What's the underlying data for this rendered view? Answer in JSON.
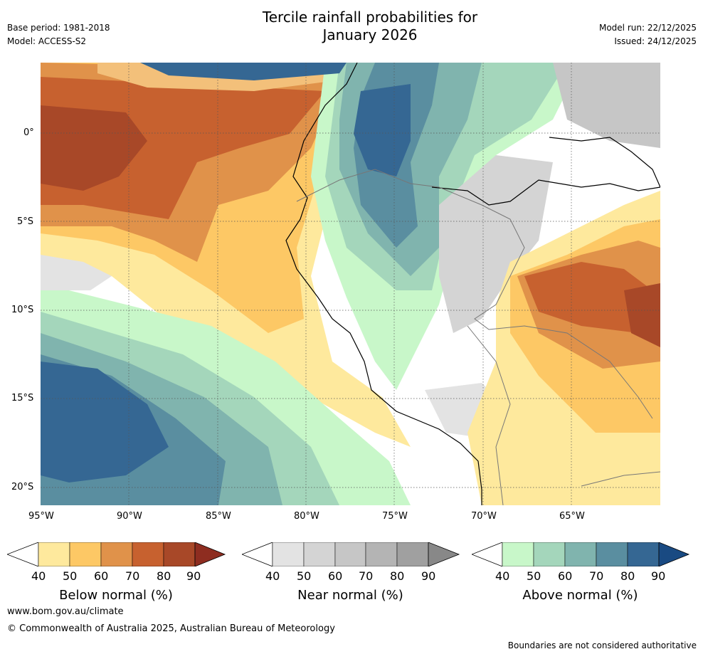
{
  "header": {
    "title_line1": "Tercile rainfall probabilities for",
    "title_line2": "January 2026",
    "base_period": "Base period: 1981-2018",
    "model": "Model: ACCESS-S2",
    "model_run": "Model run: 22/12/2025",
    "issued": "Issued: 24/12/2025"
  },
  "axes": {
    "lat_labels": [
      "0°",
      "5°S",
      "10°S",
      "15°S",
      "20°S"
    ],
    "lon_labels": [
      "95°W",
      "90°W",
      "85°W",
      "80°W",
      "75°W",
      "70°W",
      "65°W"
    ],
    "lat_values": [
      0,
      -5,
      -10,
      -15,
      -20
    ],
    "lon_values": [
      -95,
      -90,
      -85,
      -80,
      -75,
      -70,
      -65
    ],
    "lon_range": [
      -95,
      -60
    ],
    "lat_range": [
      -21,
      4
    ]
  },
  "colorbars": [
    {
      "name": "below",
      "title": "Below normal (%)",
      "ticks": [
        "40",
        "50",
        "60",
        "70",
        "80",
        "90"
      ],
      "colors": [
        "#ffffff",
        "#fee99d",
        "#fdc865",
        "#e0924a",
        "#c7612f",
        "#a84828",
        "#8e2d20"
      ]
    },
    {
      "name": "near",
      "title": "Near normal (%)",
      "ticks": [
        "40",
        "50",
        "60",
        "70",
        "80",
        "90"
      ],
      "colors": [
        "#ffffff",
        "#e3e3e3",
        "#d4d4d4",
        "#c6c6c6",
        "#b4b4b4",
        "#a0a0a0",
        "#888888"
      ]
    },
    {
      "name": "above",
      "title": "Above normal (%)",
      "ticks": [
        "40",
        "50",
        "60",
        "70",
        "80",
        "90"
      ],
      "colors": [
        "#ffffff",
        "#c8f7c9",
        "#a4d6bb",
        "#80b4ae",
        "#5a8ea0",
        "#356793",
        "#194a82"
      ]
    }
  ],
  "footer": {
    "website": "www.bom.gov.au/climate",
    "copyright": "© Commonwealth of Australia 2025, Australian Bureau of Meteorology",
    "disclaimer": "Boundaries are not considered authoritative"
  }
}
